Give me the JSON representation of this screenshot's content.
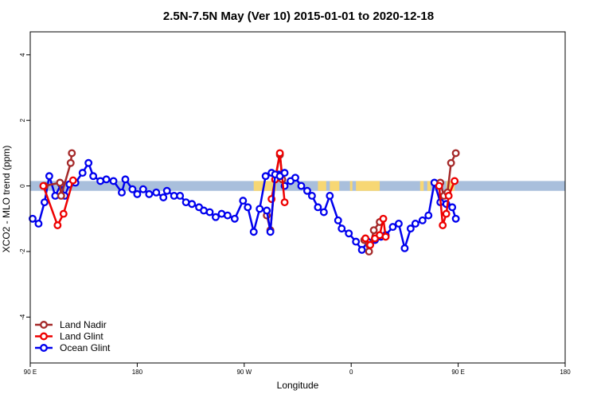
{
  "chart_data": {
    "type": "line",
    "title": "2.5N-7.5N May (Ver 10)   2015-01-01 to 2020-12-18",
    "xlabel": "Longitude",
    "ylabel": "XCO2 - MLO trend (ppm)",
    "xlim": [
      90,
      450
    ],
    "ylim": [
      -5.4,
      4.7
    ],
    "x_ticks": [
      {
        "value": 90,
        "label": "90 E"
      },
      {
        "value": 180,
        "label": "180"
      },
      {
        "value": 270,
        "label": "90 W"
      },
      {
        "value": 360,
        "label": "0"
      },
      {
        "value": 450,
        "label": "90 E"
      },
      {
        "value": 540,
        "label": "180"
      }
    ],
    "y_ticks": [
      {
        "value": -4,
        "label": "-4"
      },
      {
        "value": -2,
        "label": "-2"
      },
      {
        "value": 0,
        "label": "0"
      },
      {
        "value": 2,
        "label": "2"
      },
      {
        "value": 4,
        "label": "4"
      }
    ],
    "legend_position": "bottom-left",
    "land_ocean_band": {
      "y_range": [
        -0.15,
        0.15
      ],
      "ocean_color": "#a9bfdc",
      "land_color": "#f7d774",
      "land_segments": [
        [
          278,
          297
        ],
        [
          332,
          339
        ],
        [
          342,
          350
        ],
        [
          359,
          361
        ],
        [
          364,
          384
        ],
        [
          418,
          421
        ],
        [
          424,
          427
        ],
        [
          440,
          447
        ]
      ]
    },
    "series": [
      {
        "name": "Land Nadir",
        "color": "#a52a2a",
        "x": [
          102,
          115,
          116,
          124,
          125
        ],
        "y": [
          0.0,
          0.1,
          -0.3,
          0.7,
          1.0
        ]
      },
      {
        "name": "Land Glint",
        "color": "#ee0000",
        "x": [
          101,
          113,
          118,
          126
        ],
        "y": [
          0.0,
          -1.2,
          -0.85,
          0.17
        ]
      },
      {
        "name": "Ocean Glint",
        "color": "#0000ee",
        "x": [
          92,
          97,
          102,
          106,
          111,
          116,
          119,
          123,
          128,
          134,
          139,
          143,
          149,
          154,
          160,
          167,
          170,
          176,
          180,
          185,
          190,
          196,
          202,
          205,
          211,
          216,
          221,
          226,
          232,
          236,
          241,
          246,
          251,
          256,
          262,
          269,
          273,
          278,
          283,
          288,
          293,
          299,
          304,
          309,
          313,
          318,
          323,
          327,
          332,
          337,
          342,
          349,
          352,
          358,
          364,
          369,
          374,
          380,
          385,
          389,
          395,
          400,
          405,
          410,
          414,
          420,
          425,
          430,
          435,
          440,
          445,
          448
        ],
        "y": [
          -1.0,
          -1.15,
          -0.5,
          0.3,
          -0.3,
          0.05,
          -0.3,
          0.05,
          0.1,
          0.4,
          0.7,
          0.3,
          0.15,
          0.2,
          0.15,
          -0.2,
          0.2,
          -0.1,
          -0.25,
          -0.1,
          -0.25,
          -0.2,
          -0.35,
          -0.15,
          -0.3,
          -0.3,
          -0.5,
          -0.55,
          -0.65,
          -0.75,
          -0.8,
          -0.95,
          -0.85,
          -0.9,
          -1.0,
          -0.45,
          -0.65,
          -1.4,
          -0.7,
          0.3,
          0.4,
          0.35,
          0.0,
          0.15,
          0.25,
          0.0,
          -0.15,
          -0.3,
          -0.65,
          -0.8,
          -0.3,
          -1.05,
          -1.3,
          -1.45,
          -1.7,
          -1.95,
          -1.7,
          -1.65,
          -1.55,
          -1.5,
          -1.25,
          -1.15,
          -1.9,
          -1.3,
          -1.15,
          -1.05,
          -0.9,
          0.1,
          -0.5,
          -0.55,
          -0.65,
          -1.0
        ]
      }
    ],
    "series_b": [
      {
        "name": "Land Nadir",
        "x": [
          289,
          292,
          296,
          300,
          302
        ],
        "y": [
          -0.9,
          -1.35,
          0.2,
          0.95,
          0.2
        ]
      },
      {
        "name": "Land Glint",
        "x": [
          293,
          296,
          300,
          304
        ],
        "y": [
          -0.4,
          0.2,
          1.0,
          -0.5
        ]
      },
      {
        "name": "Ocean Glint",
        "x": [
          289,
          292,
          296,
          300,
          304
        ],
        "y": [
          -0.75,
          -1.4,
          0.35,
          0.3,
          0.4
        ]
      }
    ],
    "series_c": [
      {
        "name": "Land Nadir",
        "x": [
          371,
          375,
          379,
          384
        ],
        "y": [
          -1.65,
          -2.0,
          -1.35,
          -1.1
        ]
      },
      {
        "name": "Land Glint",
        "x": [
          372,
          376,
          380,
          384,
          387,
          389
        ],
        "y": [
          -1.6,
          -1.8,
          -1.6,
          -1.5,
          -1.0,
          -1.55
        ]
      },
      {
        "name": "Land Nadir",
        "x": [
          435,
          438,
          441,
          444,
          448
        ],
        "y": [
          0.1,
          -0.3,
          -0.2,
          0.7,
          1.0
        ]
      },
      {
        "name": "Land Glint",
        "x": [
          434,
          437,
          440,
          442,
          447
        ],
        "y": [
          0.0,
          -1.2,
          -0.85,
          -0.3,
          0.15
        ]
      }
    ]
  }
}
